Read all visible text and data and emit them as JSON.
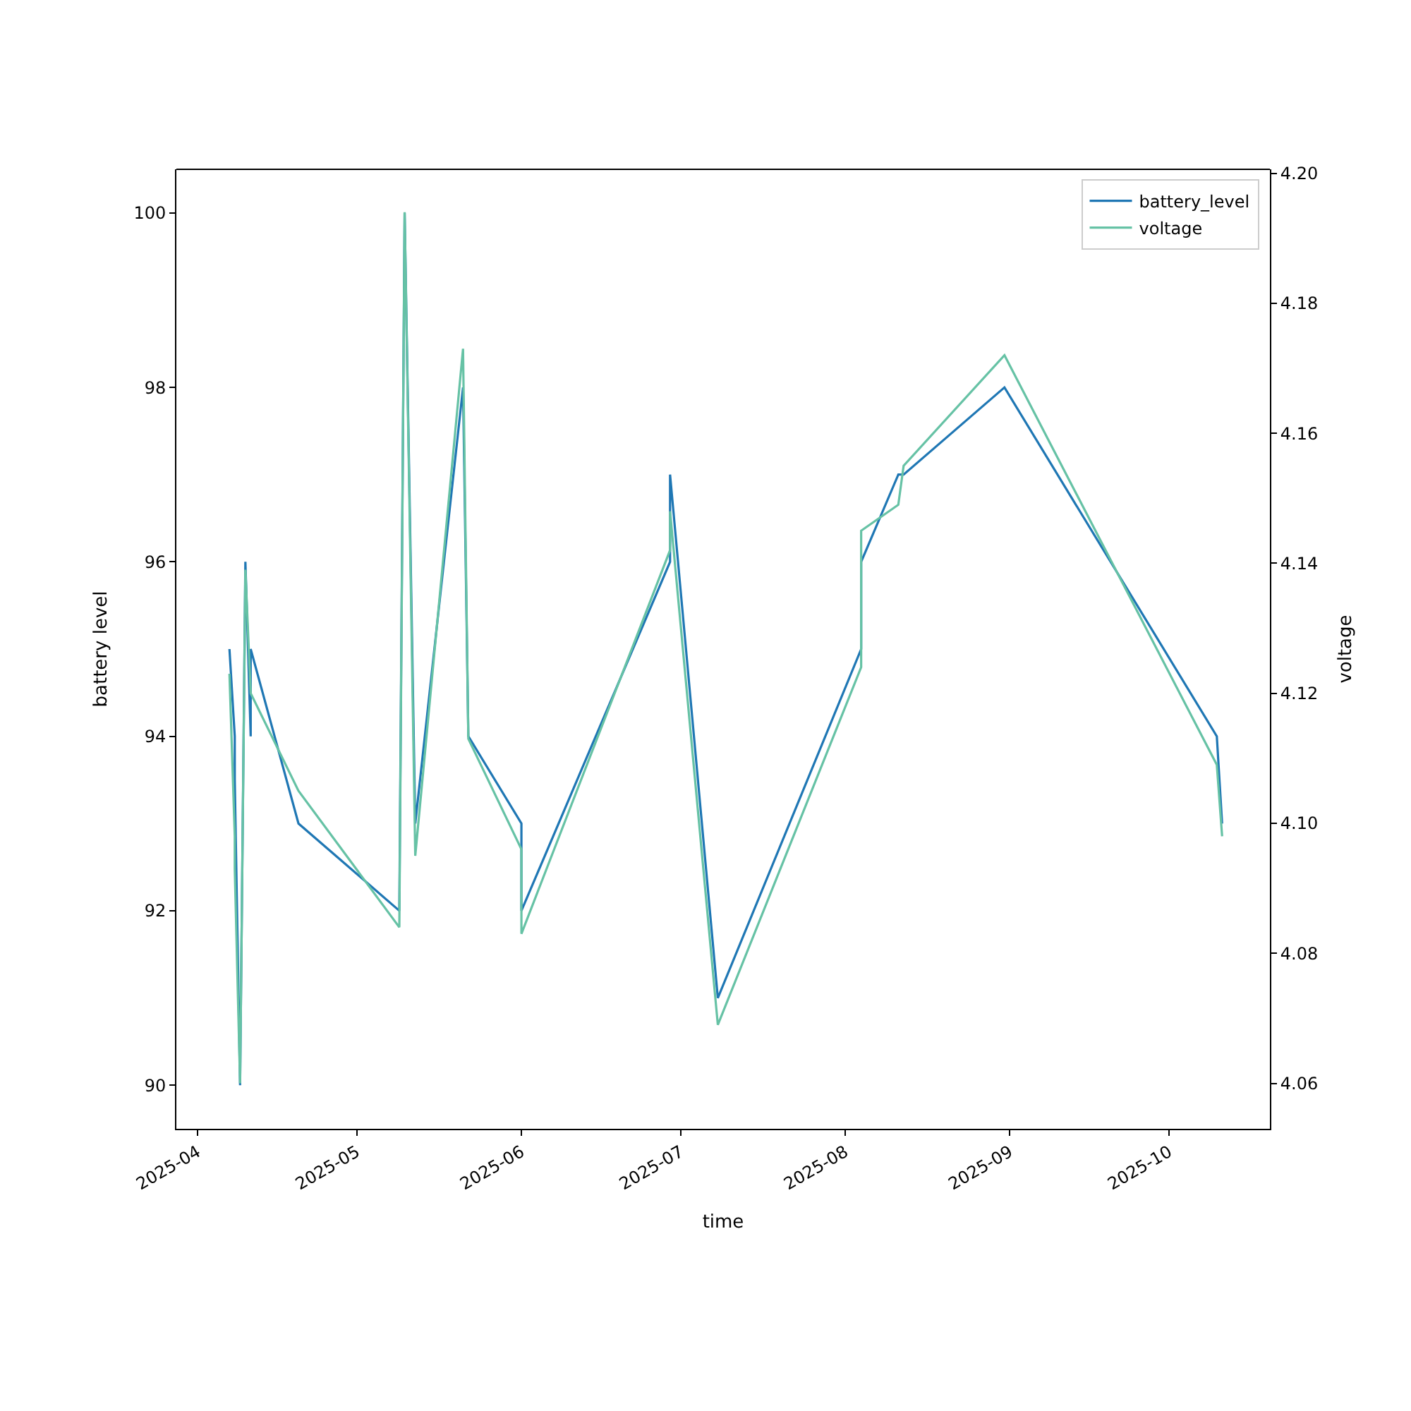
{
  "chart_data": {
    "type": "line",
    "xlabel": "time",
    "ylabel": "battery level",
    "y2label": "voltage",
    "x": [
      "2025-04-07",
      "2025-04-08",
      "2025-04-08",
      "2025-04-09",
      "2025-04-10",
      "2025-04-11",
      "2025-04-11",
      "2025-04-20",
      "2025-05-09",
      "2025-05-10",
      "2025-05-12",
      "2025-05-21",
      "2025-05-22",
      "2025-06-01",
      "2025-06-01",
      "2025-06-29",
      "2025-06-29",
      "2025-07-08",
      "2025-08-04",
      "2025-08-04",
      "2025-08-11",
      "2025-08-12",
      "2025-08-31",
      "2025-10-10",
      "2025-10-11"
    ],
    "series": [
      {
        "name": "battery_level",
        "color": "#1f77b4",
        "values": [
          95,
          94,
          93.5,
          90,
          96,
          94,
          95,
          93,
          92,
          100,
          93,
          98,
          94,
          93,
          92,
          96,
          97,
          91,
          95,
          96,
          97,
          97,
          98,
          94,
          93
        ]
      },
      {
        "name": "voltage",
        "color": "#66c2a5",
        "axis": "y2",
        "values": [
          4.123,
          4.098,
          4.093,
          4.06,
          4.139,
          4.12,
          4.12,
          4.105,
          4.084,
          4.194,
          4.095,
          4.173,
          4.113,
          4.096,
          4.083,
          4.142,
          4.148,
          4.069,
          4.124,
          4.145,
          4.149,
          4.155,
          4.172,
          4.109,
          4.098
        ]
      }
    ],
    "xlim": [
      "2025-03-28",
      "2025-10-20"
    ],
    "xticks": [
      {
        "value": "2025-04-01",
        "label": "2025-04"
      },
      {
        "value": "2025-05-01",
        "label": "2025-05"
      },
      {
        "value": "2025-06-01",
        "label": "2025-06"
      },
      {
        "value": "2025-07-01",
        "label": "2025-07"
      },
      {
        "value": "2025-08-01",
        "label": "2025-08"
      },
      {
        "value": "2025-09-01",
        "label": "2025-09"
      },
      {
        "value": "2025-10-01",
        "label": "2025-10"
      }
    ],
    "ylim": [
      89.5,
      100.5
    ],
    "yticks": [
      90,
      92,
      94,
      96,
      98,
      100
    ],
    "y2lim": [
      4.053,
      4.2006
    ],
    "y2ticks": [
      4.06,
      4.08,
      {
        "value": 4.1,
        "label": "4.10"
      },
      4.12,
      4.14,
      4.16,
      4.18,
      {
        "value": 4.2,
        "label": "4.20"
      }
    ],
    "legend": "top right",
    "marker": "none",
    "line_style": "solid"
  }
}
